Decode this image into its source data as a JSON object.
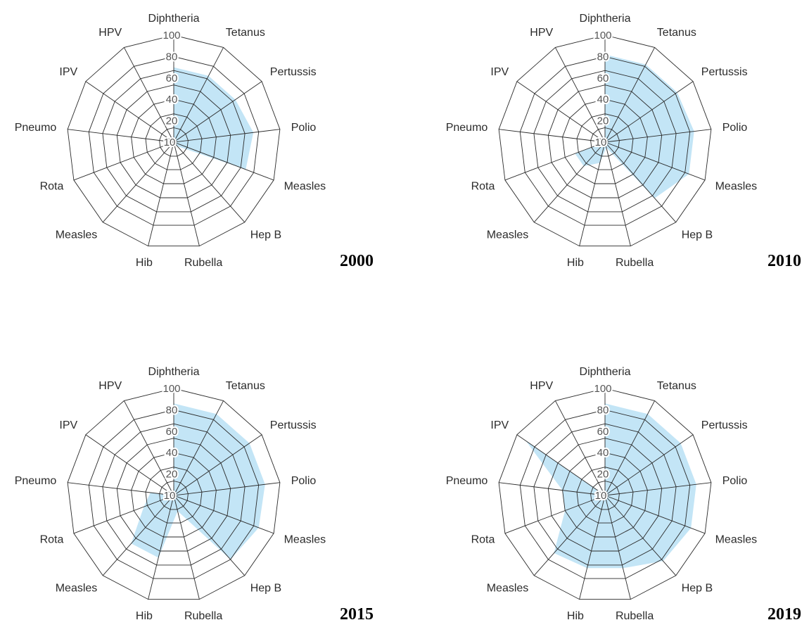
{
  "colors": {
    "fill": "#b9e1f5",
    "grid": "#2a2a2a"
  },
  "chart_data": [
    {
      "type": "radar",
      "title": "2000",
      "axes": [
        "Diphtheria",
        "Tetanus",
        "Pertussis",
        "Polio",
        "Measles",
        "Hep B",
        "Rubella",
        "Hib",
        "Measles",
        "Rota",
        "Pneumo",
        "IPV",
        "HPV"
      ],
      "ticks": [
        "10",
        "20",
        "40",
        "60",
        "80",
        "100"
      ],
      "rlim": [
        0,
        100
      ],
      "series": [
        {
          "values": [
            70,
            70,
            70,
            75,
            72,
            5,
            0,
            0,
            0,
            15,
            0,
            0,
            0
          ]
        }
      ]
    },
    {
      "type": "radar",
      "title": "2010",
      "axes": [
        "Diphtheria",
        "Tetanus",
        "Pertussis",
        "Polio",
        "Measles",
        "Hep B",
        "Rubella",
        "Hib",
        "Measles",
        "Rota",
        "Pneumo",
        "IPV",
        "HPV"
      ],
      "ticks": [
        "10",
        "20",
        "40",
        "60",
        "80",
        "100"
      ],
      "rlim": [
        0,
        100
      ],
      "series": [
        {
          "values": [
            82,
            82,
            82,
            84,
            84,
            70,
            5,
            20,
            30,
            30,
            0,
            0,
            0
          ]
        }
      ]
    },
    {
      "type": "radar",
      "title": "2015",
      "axes": [
        "Diphtheria",
        "Tetanus",
        "Pertussis",
        "Polio",
        "Measles",
        "Hep B",
        "Rubella",
        "Hib",
        "Measles",
        "Rota",
        "Pneumo",
        "IPV",
        "HPV"
      ],
      "ticks": [
        "10",
        "20",
        "40",
        "60",
        "80",
        "100"
      ],
      "rlim": [
        0,
        100
      ],
      "series": [
        {
          "values": [
            86,
            86,
            86,
            86,
            85,
            80,
            15,
            60,
            60,
            30,
            22,
            0,
            0
          ]
        }
      ]
    },
    {
      "type": "radar",
      "title": "2019",
      "axes": [
        "Diphtheria",
        "Tetanus",
        "Pertussis",
        "Polio",
        "Measles",
        "Hep B",
        "Rubella",
        "Hib",
        "Measles",
        "Rota",
        "Pneumo",
        "IPV",
        "HPV"
      ],
      "ticks": [
        "10",
        "20",
        "40",
        "60",
        "80",
        "100"
      ],
      "rlim": [
        0,
        100
      ],
      "series": [
        {
          "values": [
            86,
            86,
            86,
            86,
            86,
            82,
            70,
            70,
            72,
            40,
            40,
            90,
            0
          ]
        }
      ]
    }
  ]
}
